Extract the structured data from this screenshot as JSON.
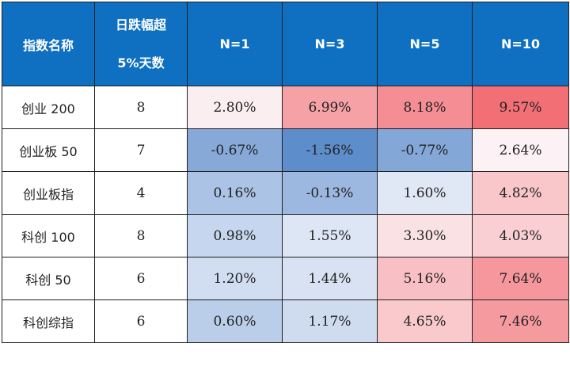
{
  "header": {
    "name": "指数名称",
    "count_line1": "日跌幅超",
    "count_line2": "5%天数",
    "cols": [
      "N=1",
      "N=3",
      "N=5",
      "N=10"
    ]
  },
  "rows": [
    {
      "name": "创业 200",
      "days": "8",
      "values": [
        "2.80%",
        "6.99%",
        "8.18%",
        "9.57%"
      ],
      "colors": [
        "#fbeef0",
        "#f6a1a6",
        "#f48d94",
        "#f26f75"
      ]
    },
    {
      "name": "创业板 50",
      "days": "7",
      "values": [
        "-0.67%",
        "-1.56%",
        "-0.77%",
        "2.64%"
      ],
      "colors": [
        "#86a9d8",
        "#5e8dcb",
        "#83a7d7",
        "#fcf1f4"
      ]
    },
    {
      "name": "创业板指",
      "days": "4",
      "values": [
        "0.16%",
        "-0.13%",
        "1.60%",
        "4.82%"
      ],
      "colors": [
        "#abc3e5",
        "#9cb8e0",
        "#e0e8f5",
        "#f9c6ca"
      ]
    },
    {
      "name": "科创 100",
      "days": "8",
      "values": [
        "0.98%",
        "1.55%",
        "3.30%",
        "4.03%"
      ],
      "colors": [
        "#c6d6ee",
        "#dde6f4",
        "#fae1e4",
        "#f9cfd3"
      ]
    },
    {
      "name": "科创 50",
      "days": "6",
      "values": [
        "1.20%",
        "1.44%",
        "5.16%",
        "7.64%"
      ],
      "colors": [
        "#d1ddf1",
        "#d8e2f3",
        "#f8c0c4",
        "#f5979d"
      ]
    },
    {
      "name": "科创综指",
      "days": "6",
      "values": [
        "0.60%",
        "1.17%",
        "4.65%",
        "7.46%"
      ],
      "colors": [
        "#bacde9",
        "#cfdcf0",
        "#f9c9cc",
        "#f59ba0"
      ]
    }
  ]
}
